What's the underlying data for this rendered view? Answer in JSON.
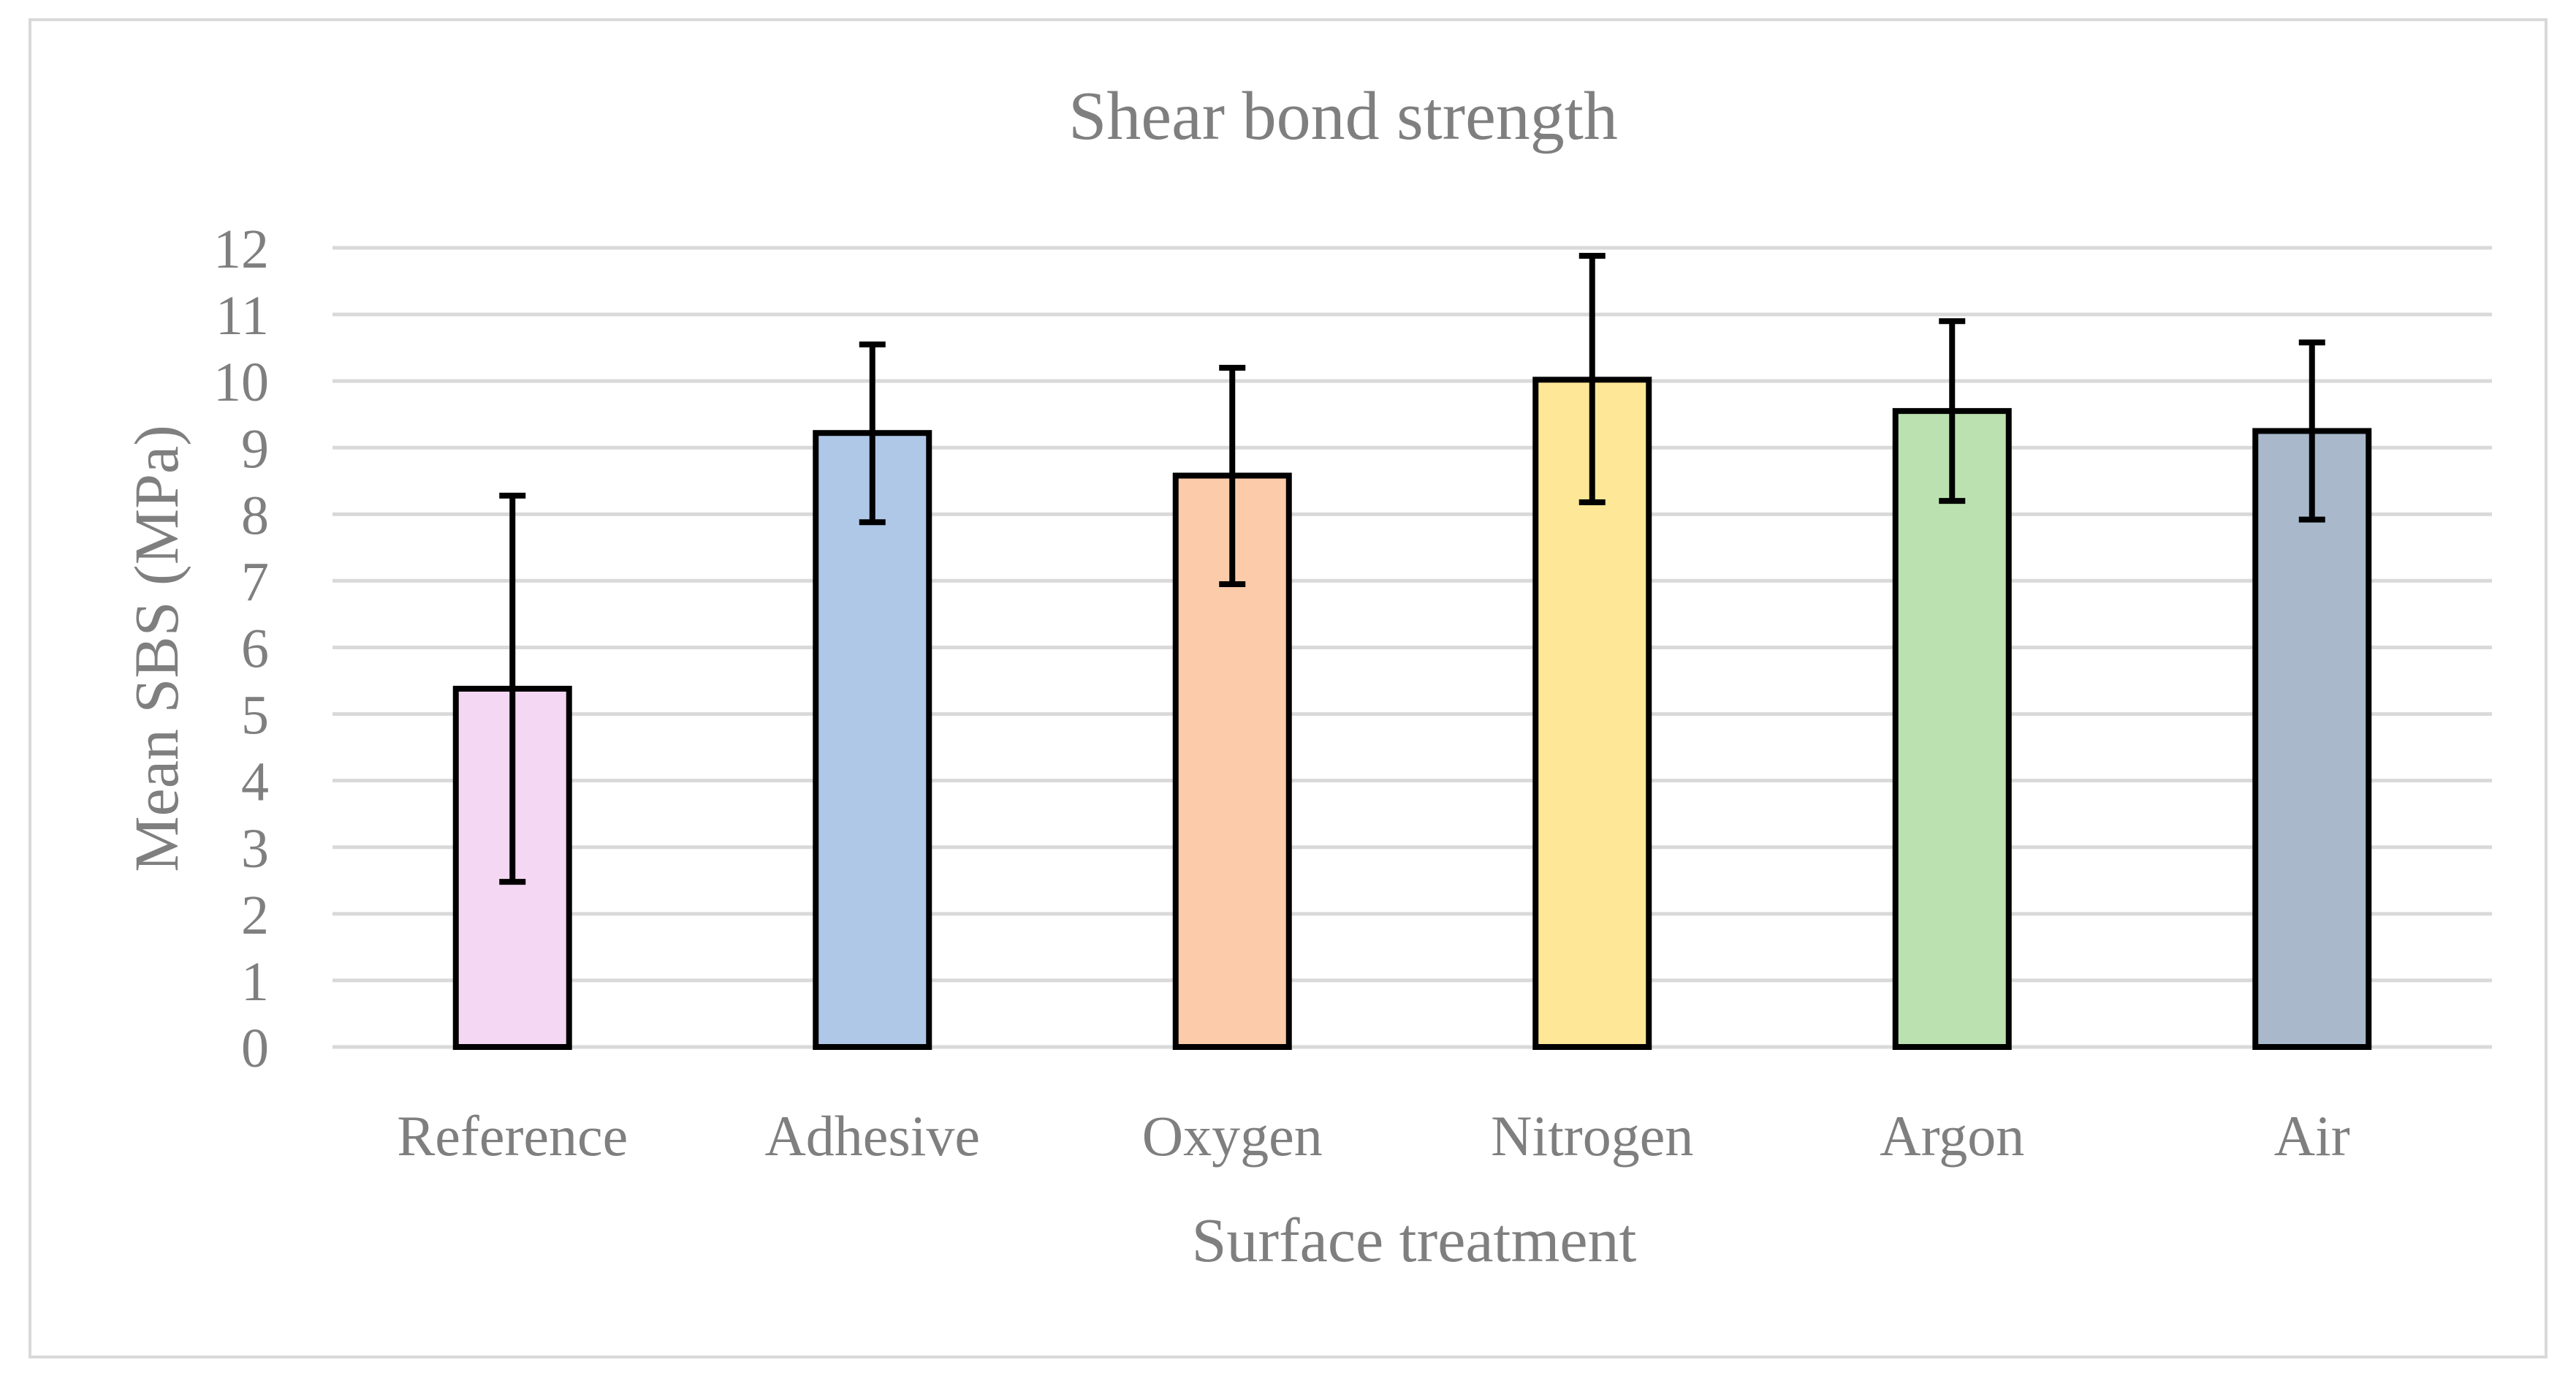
{
  "chart_data": {
    "type": "bar",
    "title": "Shear bond strength",
    "xlabel": "Surface treatment",
    "ylabel": "Mean SBS (MPa)",
    "ylim": [
      0,
      12
    ],
    "yticks": [
      0,
      1,
      2,
      3,
      4,
      5,
      6,
      7,
      8,
      9,
      10,
      11,
      12
    ],
    "yticks_labels": [
      "0",
      "1",
      "2",
      "3",
      "4",
      "5",
      "6",
      "7",
      "8",
      "9",
      "10",
      "11",
      "12"
    ],
    "grid": true,
    "legend": "none",
    "categories": [
      "Reference",
      "Adhesive",
      "Oxygen",
      "Nitrogen",
      "Argon",
      "Air"
    ],
    "values": [
      5.38,
      9.22,
      8.58,
      10.02,
      9.55,
      9.25
    ],
    "error_low": [
      2.48,
      7.88,
      6.95,
      8.18,
      8.2,
      7.92
    ],
    "error_high": [
      8.28,
      10.55,
      10.2,
      11.88,
      10.9,
      10.58
    ],
    "colors": [
      "#f4d7f2",
      "#afc8e8",
      "#fccbaa",
      "#fee796",
      "#bbe1b0",
      "#a9b9cb"
    ],
    "edge_color": "#000000",
    "gridline_color": "#d9d9d9",
    "text_color": "#7f7f7f",
    "border_color": "#d9d9d9"
  }
}
